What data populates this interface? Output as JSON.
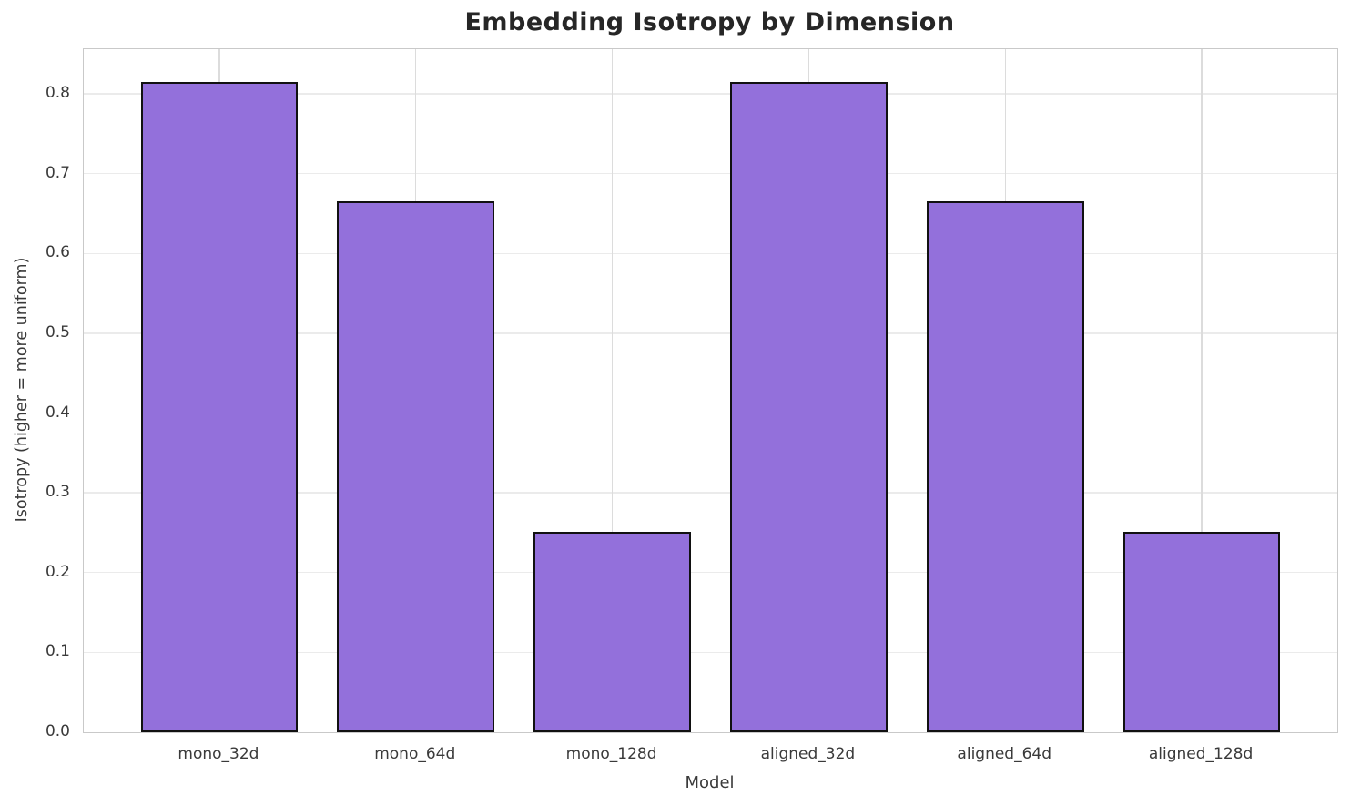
{
  "chart_data": {
    "type": "bar",
    "title": "Embedding Isotropy by Dimension",
    "xlabel": "Model",
    "ylabel": "Isotropy (higher = more uniform)",
    "categories": [
      "mono_32d",
      "mono_64d",
      "mono_128d",
      "aligned_32d",
      "aligned_64d",
      "aligned_128d"
    ],
    "values": [
      0.815,
      0.665,
      0.251,
      0.815,
      0.665,
      0.251
    ],
    "yticks": [
      0.0,
      0.1,
      0.2,
      0.3,
      0.4,
      0.5,
      0.6,
      0.7,
      0.8
    ],
    "ylim": [
      0,
      0.856
    ],
    "xlim": [
      -0.69,
      5.69
    ],
    "bar_width_units": 0.8,
    "grid": true,
    "legend": null,
    "colors": {
      "bar_fill": "#9370DB",
      "bar_edge": "#111111",
      "grid_h": "#ebebeb",
      "grid_v": "#dcdcdc",
      "spine": "#c9c9c9",
      "title_text": "#262626",
      "tick_text": "#3a3a3a",
      "background": "#ffffff"
    }
  }
}
